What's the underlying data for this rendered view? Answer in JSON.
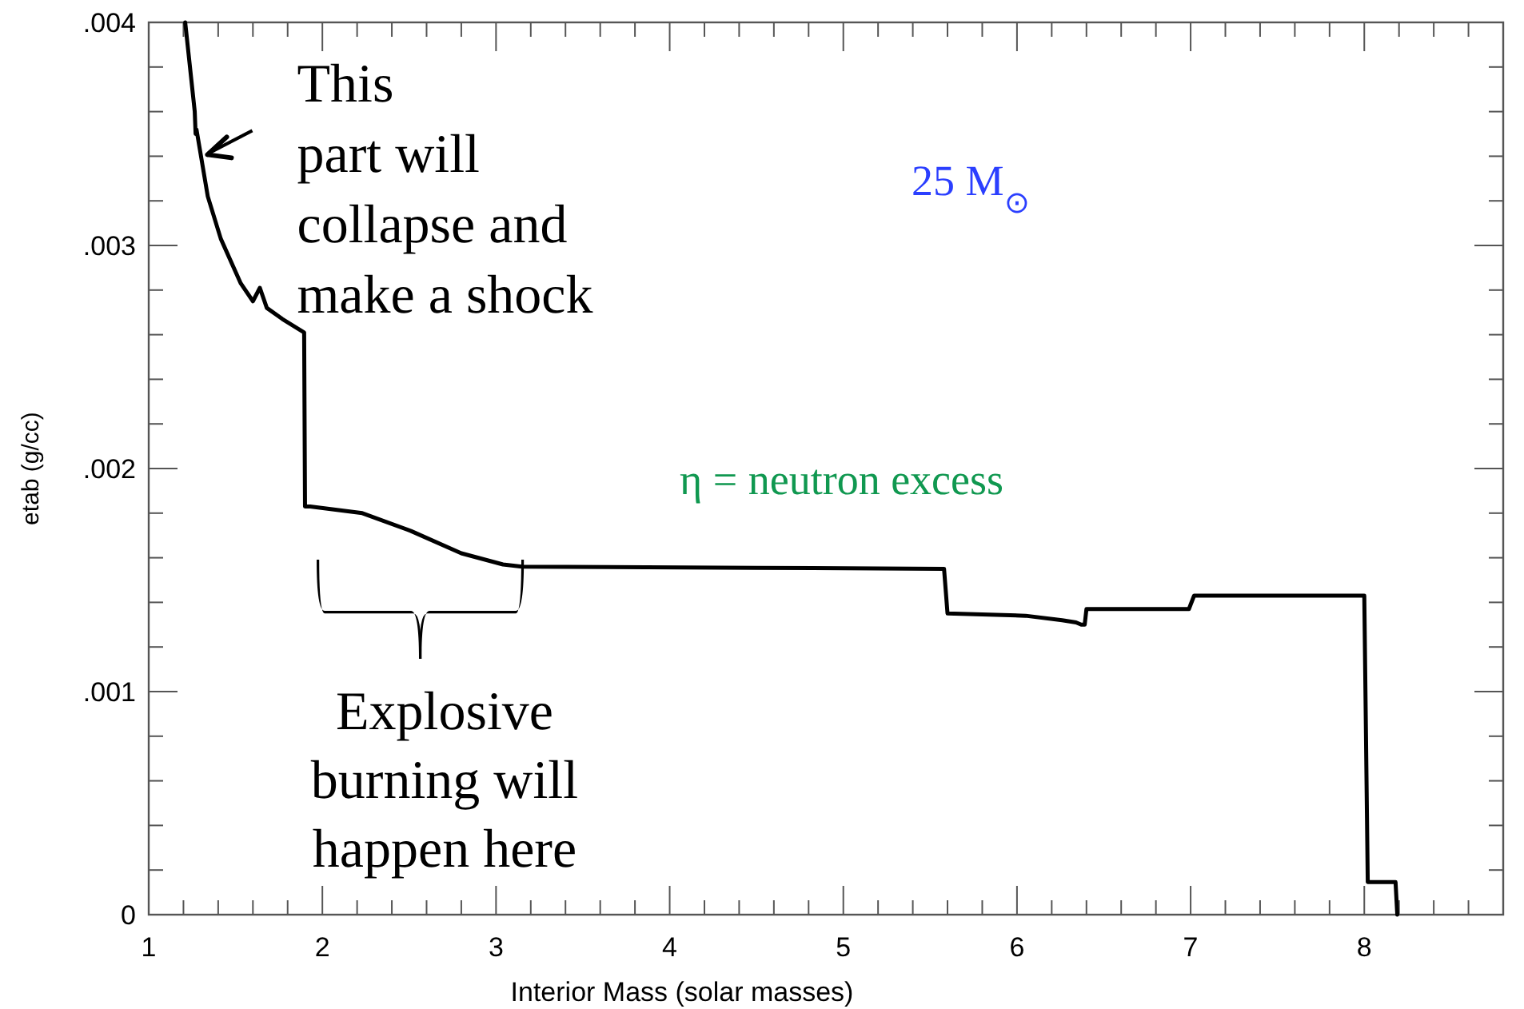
{
  "chart_data": {
    "type": "line",
    "xlabel": "Interior Mass (solar masses)",
    "ylabel": "etab (g/cc)",
    "x": [
      1.21,
      1.265,
      1.27,
      1.275,
      1.34,
      1.415,
      1.53,
      1.6,
      1.64,
      1.68,
      1.77,
      1.895,
      1.9,
      1.93,
      2.23,
      2.51,
      2.8,
      3.04,
      3.15,
      4.5,
      5.58,
      5.6,
      6.05,
      6.26,
      6.34,
      6.37,
      6.39,
      6.4,
      6.99,
      7.02,
      8.0,
      8.02,
      8.18,
      8.19
    ],
    "series": [
      {
        "color": "#000000",
        "values": [
          0.004,
          0.0036,
          0.0035,
          0.00352,
          0.00322,
          0.00303,
          0.00283,
          0.00275,
          0.00281,
          0.00272,
          0.00267,
          0.00261,
          0.00183,
          0.00183,
          0.0018,
          0.00172,
          0.00162,
          0.00157,
          0.00156,
          0.001555,
          0.00155,
          0.00135,
          0.00134,
          0.00132,
          0.00131,
          0.0013,
          0.0013,
          0.00137,
          0.00137,
          0.00143,
          0.00143,
          0.000146,
          0.000146,
          0
        ]
      }
    ],
    "xlim": [
      1,
      8.8
    ],
    "xticks": [
      1,
      {
        "value": 1.2,
        "label": null
      },
      {
        "value": 1.4,
        "label": null
      },
      {
        "value": 1.6,
        "label": null
      },
      {
        "value": 1.8,
        "label": null
      },
      2,
      {
        "value": 2.2,
        "label": null
      },
      {
        "value": 2.4,
        "label": null
      },
      {
        "value": 2.6,
        "label": null
      },
      {
        "value": 2.8,
        "label": null
      },
      3,
      {
        "value": 3.2,
        "label": null
      },
      {
        "value": 3.4,
        "label": null
      },
      {
        "value": 3.6,
        "label": null
      },
      {
        "value": 3.8,
        "label": null
      },
      4,
      {
        "value": 4.2,
        "label": null
      },
      {
        "value": 4.4,
        "label": null
      },
      {
        "value": 4.6,
        "label": null
      },
      {
        "value": 4.8,
        "label": null
      },
      5,
      {
        "value": 5.2,
        "label": null
      },
      {
        "value": 5.4,
        "label": null
      },
      {
        "value": 5.6,
        "label": null
      },
      {
        "value": 5.8,
        "label": null
      },
      6,
      {
        "value": 6.2,
        "label": null
      },
      {
        "value": 6.4,
        "label": null
      },
      {
        "value": 6.6,
        "label": null
      },
      {
        "value": 6.8,
        "label": null
      },
      7,
      {
        "value": 7.2,
        "label": null
      },
      {
        "value": 7.4,
        "label": null
      },
      {
        "value": 7.6,
        "label": null
      },
      {
        "value": 7.8,
        "label": null
      },
      8,
      {
        "value": 8.2,
        "label": null
      },
      {
        "value": 8.4,
        "label": null
      },
      {
        "value": 8.6,
        "label": null
      },
      {
        "value": 8.8,
        "label": null
      }
    ],
    "ylim": [
      0,
      0.004
    ],
    "yticks": [
      0,
      {
        "value": 0.0002,
        "label": null
      },
      {
        "value": 0.0004,
        "label": null
      },
      {
        "value": 0.0006,
        "label": null
      },
      {
        "value": 0.0008,
        "label": null
      },
      {
        "value": 0.001,
        "label": ".001"
      },
      {
        "value": 0.0012,
        "label": null
      },
      {
        "value": 0.0014,
        "label": null
      },
      {
        "value": 0.0016,
        "label": null
      },
      {
        "value": 0.0018,
        "label": null
      },
      {
        "value": 0.002,
        "label": ".002"
      },
      {
        "value": 0.0022,
        "label": null
      },
      {
        "value": 0.0024,
        "label": null
      },
      {
        "value": 0.0026,
        "label": null
      },
      {
        "value": 0.0028,
        "label": null
      },
      {
        "value": 0.003,
        "label": ".003"
      },
      {
        "value": 0.0032,
        "label": null
      },
      {
        "value": 0.0034,
        "label": null
      },
      {
        "value": 0.0036,
        "label": null
      },
      {
        "value": 0.0038,
        "label": null
      },
      {
        "value": 0.004,
        "label": ".004"
      }
    ],
    "grid": false,
    "line_style": "solid",
    "marker": "none",
    "annotations": [
      {
        "text": "This part will collapse and make a shock",
        "x": 1.32,
        "y": 0.0034
      },
      "Explosive burning will happen here",
      "25 M$_{⊙}$",
      "η = neutron excess"
    ]
  }
}
